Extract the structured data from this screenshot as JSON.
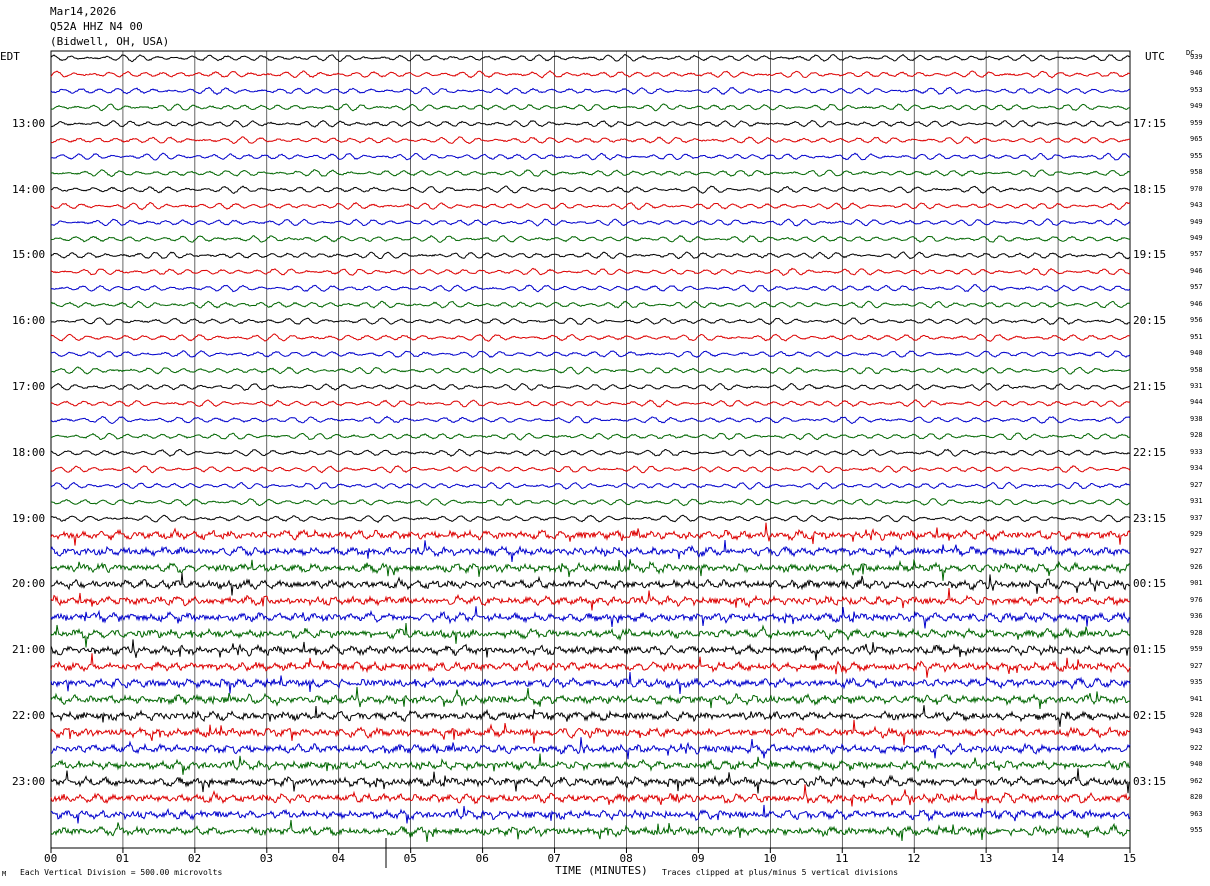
{
  "header": {
    "date": "Mar14,2026",
    "station": "Q52A HHZ N4 00",
    "location": "(Bidwell, OH, USA)"
  },
  "labels": {
    "left_tz": "EDT",
    "right_tz": "UTC",
    "dc": "DC"
  },
  "chart_data": {
    "type": "line",
    "title": "",
    "xlabel": "TIME (MINUTES)",
    "xlim": [
      0,
      15
    ],
    "x_ticks": [
      "00",
      "01",
      "02",
      "03",
      "04",
      "05",
      "06",
      "07",
      "08",
      "09",
      "10",
      "11",
      "12",
      "13",
      "14",
      "15"
    ],
    "left_hour_labels": [
      "13:00",
      "14:00",
      "15:00",
      "16:00",
      "17:00",
      "18:00",
      "19:00",
      "20:00",
      "21:00",
      "22:00",
      "23:00"
    ],
    "right_hour_labels": [
      "17:15",
      "18:15",
      "19:15",
      "20:15",
      "21:15",
      "22:15",
      "23:15",
      "00:15",
      "01:15",
      "02:15",
      "03:15"
    ],
    "trace_colors": [
      "#000000",
      "#dd0000",
      "#0000cc",
      "#006600"
    ],
    "dc_offsets": [
      939,
      946,
      953,
      949,
      959,
      965,
      955,
      958,
      970,
      943,
      949,
      949,
      957,
      946,
      957,
      946,
      956,
      951,
      940,
      958,
      931,
      944,
      938,
      928,
      933,
      934,
      927,
      931,
      937,
      929,
      927,
      926,
      901,
      976,
      936,
      928,
      959,
      927,
      935,
      941,
      928,
      943,
      922,
      940,
      962,
      820,
      963,
      955
    ],
    "vertical_division_uV": 500.0,
    "clip_divisions": 5
  },
  "footer": {
    "scale": "Each Vertical Division =  500.00 microvolts",
    "clip": "Traces clipped at plus/minus 5 vertical divisions",
    "mark": "M"
  }
}
